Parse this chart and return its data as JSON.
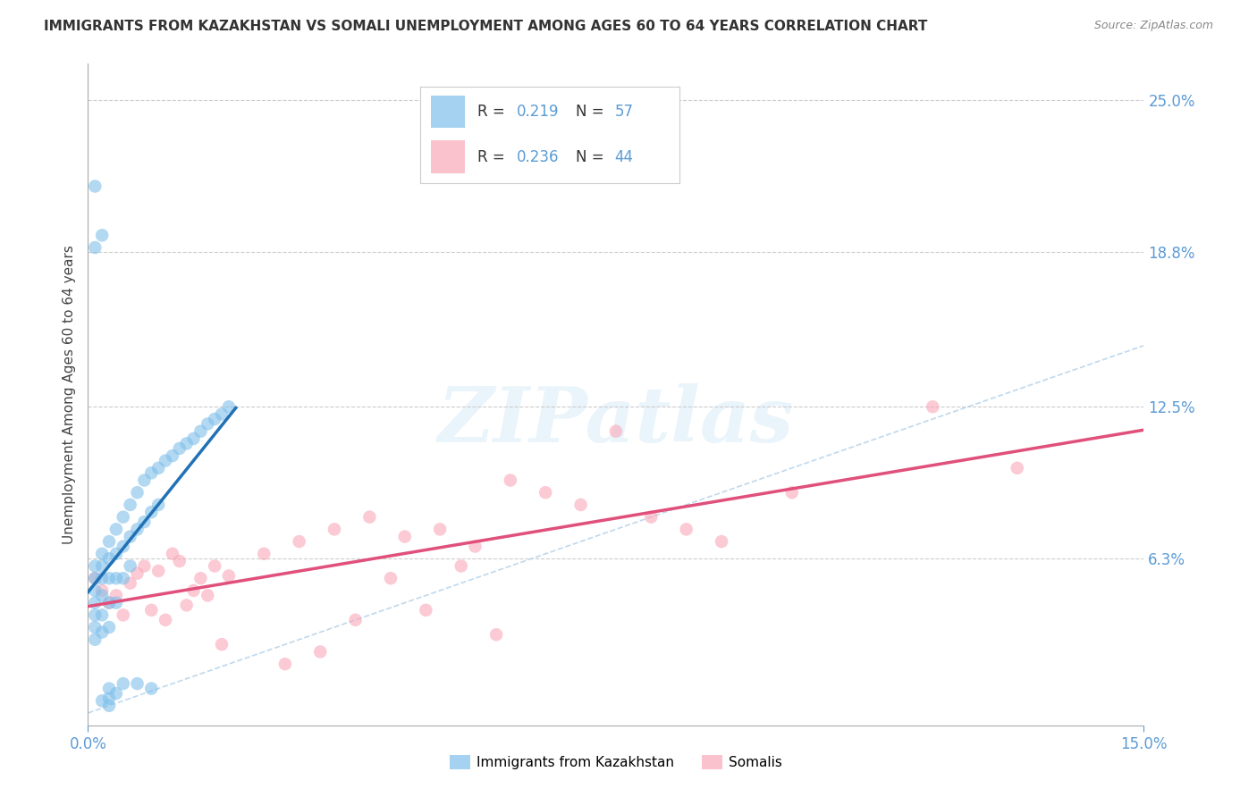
{
  "title": "IMMIGRANTS FROM KAZAKHSTAN VS SOMALI UNEMPLOYMENT AMONG AGES 60 TO 64 YEARS CORRELATION CHART",
  "source": "Source: ZipAtlas.com",
  "ylabel": "Unemployment Among Ages 60 to 64 years",
  "xlim": [
    0.0,
    0.15
  ],
  "ylim": [
    -0.005,
    0.265
  ],
  "color_blue": "#7fbfea",
  "color_pink": "#f9a8b8",
  "color_blue_line": "#2171b5",
  "color_pink_line": "#e0507a",
  "color_diag_line": "#b0cfe8",
  "color_axis_text": "#5b9bd5",
  "watermark_text": "ZIPatlas",
  "legend1_label": "Immigrants from Kazakhstan",
  "legend2_label": "Somalis",
  "R1": "0.219",
  "N1": "57",
  "R2": "0.236",
  "N2": "44",
  "ytick_vals": [
    0.063,
    0.125,
    0.188,
    0.25
  ],
  "ytick_labels": [
    "6.3%",
    "12.5%",
    "18.8%",
    "25.0%"
  ],
  "xtick_vals": [
    0.0,
    0.15
  ],
  "xtick_labels": [
    "0.0%",
    "15.0%"
  ],
  "blue_x": [
    0.001,
    0.001,
    0.001,
    0.001,
    0.001,
    0.001,
    0.001,
    0.002,
    0.002,
    0.002,
    0.002,
    0.002,
    0.002,
    0.003,
    0.003,
    0.003,
    0.003,
    0.003,
    0.004,
    0.004,
    0.004,
    0.004,
    0.005,
    0.005,
    0.005,
    0.006,
    0.006,
    0.006,
    0.007,
    0.007,
    0.008,
    0.008,
    0.009,
    0.009,
    0.01,
    0.01,
    0.011,
    0.012,
    0.013,
    0.014,
    0.015,
    0.016,
    0.017,
    0.018,
    0.019,
    0.02,
    0.002,
    0.003,
    0.004,
    0.001,
    0.001,
    0.002,
    0.003,
    0.003,
    0.005,
    0.007,
    0.009
  ],
  "blue_y": [
    0.06,
    0.055,
    0.05,
    0.045,
    0.04,
    0.035,
    0.03,
    0.065,
    0.06,
    0.055,
    0.048,
    0.04,
    0.033,
    0.07,
    0.063,
    0.055,
    0.045,
    0.035,
    0.075,
    0.065,
    0.055,
    0.045,
    0.08,
    0.068,
    0.055,
    0.085,
    0.072,
    0.06,
    0.09,
    0.075,
    0.095,
    0.078,
    0.098,
    0.082,
    0.1,
    0.085,
    0.103,
    0.105,
    0.108,
    0.11,
    0.112,
    0.115,
    0.118,
    0.12,
    0.122,
    0.125,
    0.195,
    0.01,
    0.008,
    0.215,
    0.19,
    0.005,
    0.003,
    0.006,
    0.012,
    0.012,
    0.01
  ],
  "pink_x": [
    0.001,
    0.002,
    0.003,
    0.004,
    0.005,
    0.006,
    0.007,
    0.008,
    0.009,
    0.01,
    0.011,
    0.012,
    0.013,
    0.014,
    0.015,
    0.016,
    0.017,
    0.018,
    0.019,
    0.02,
    0.025,
    0.028,
    0.03,
    0.033,
    0.035,
    0.038,
    0.04,
    0.043,
    0.045,
    0.048,
    0.05,
    0.053,
    0.055,
    0.058,
    0.06,
    0.065,
    0.07,
    0.075,
    0.08,
    0.085,
    0.09,
    0.1,
    0.12,
    0.132
  ],
  "pink_y": [
    0.055,
    0.05,
    0.045,
    0.048,
    0.04,
    0.053,
    0.057,
    0.06,
    0.042,
    0.058,
    0.038,
    0.065,
    0.062,
    0.044,
    0.05,
    0.055,
    0.048,
    0.06,
    0.028,
    0.056,
    0.065,
    0.02,
    0.07,
    0.025,
    0.075,
    0.038,
    0.08,
    0.055,
    0.072,
    0.042,
    0.075,
    0.06,
    0.068,
    0.032,
    0.095,
    0.09,
    0.085,
    0.115,
    0.08,
    0.075,
    0.07,
    0.09,
    0.125,
    0.1
  ]
}
